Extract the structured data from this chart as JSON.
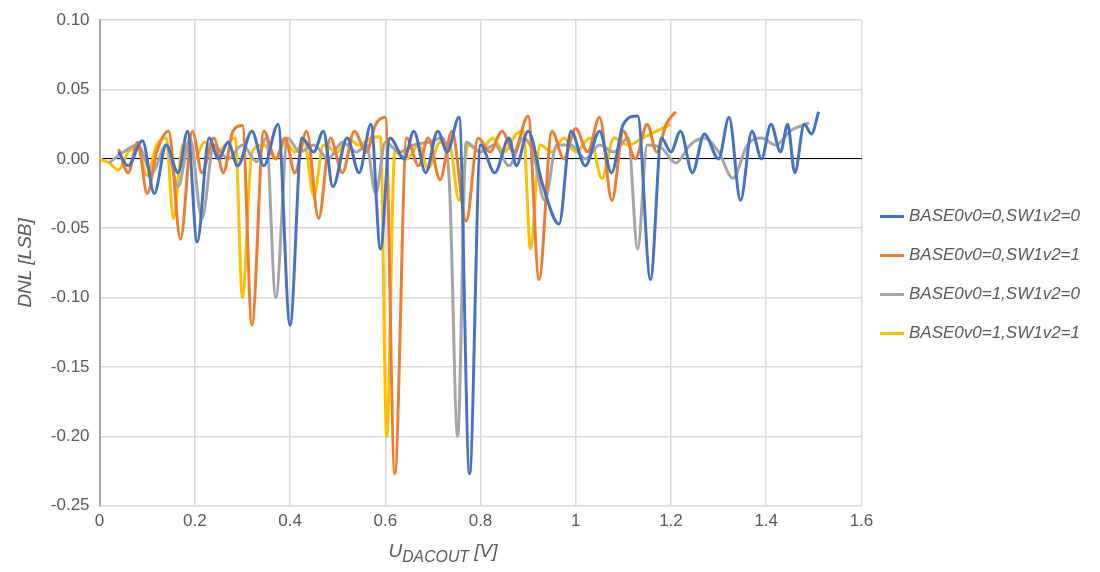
{
  "chart_data": {
    "type": "line",
    "xlabel": "U$_{DACOUT}$ [V]",
    "ylabel": "DNL [LSB]",
    "xlim": [
      0,
      1.6
    ],
    "xticks": [
      0,
      0.2,
      0.4,
      0.6,
      0.8,
      1,
      1.2,
      1.4,
      1.6
    ],
    "ylim": [
      -0.25,
      0.1
    ],
    "yticks": [
      {
        "value": -0.25,
        "label": "-0.25"
      },
      {
        "value": -0.2,
        "label": "-0.20"
      },
      {
        "value": -0.15,
        "label": "-0.15"
      },
      {
        "value": -0.1,
        "label": "-0.10"
      },
      {
        "value": -0.05,
        "label": "-0.05"
      },
      {
        "value": 0,
        "label": "0.00"
      },
      {
        "value": 0.05,
        "label": "0.05"
      },
      {
        "value": 0.1,
        "label": "0.10"
      }
    ],
    "grid": true,
    "legend": "right",
    "marker": "none",
    "line_style": "solid",
    "series": [
      {
        "name": "BASE0v0=0,SW1v2=0",
        "color": "#4472c4",
        "x": [
          0.04,
          0.06,
          0.09,
          0.115,
          0.14,
          0.165,
          0.185,
          0.205,
          0.23,
          0.25,
          0.27,
          0.29,
          0.32,
          0.345,
          0.375,
          0.4,
          0.425,
          0.45,
          0.47,
          0.49,
          0.52,
          0.545,
          0.57,
          0.59,
          0.61,
          0.64,
          0.66,
          0.685,
          0.71,
          0.73,
          0.755,
          0.777,
          0.8,
          0.83,
          0.86,
          0.875,
          0.9,
          0.93,
          0.965,
          0.99,
          1.02,
          1.05,
          1.075,
          1.1,
          1.13,
          1.157,
          1.18,
          1.2,
          1.22,
          1.245,
          1.27,
          1.3,
          1.322,
          1.346,
          1.37,
          1.39,
          1.41,
          1.43,
          1.445,
          1.46,
          1.48,
          1.495,
          1.51
        ],
        "values": [
          0.005,
          -0.005,
          0.013,
          -0.025,
          0.01,
          -0.01,
          0.02,
          -0.06,
          0.015,
          0.0,
          0.012,
          -0.005,
          0.02,
          -0.005,
          0.025,
          -0.12,
          0.015,
          0.005,
          0.02,
          -0.02,
          0.015,
          -0.01,
          0.025,
          -0.065,
          0.015,
          0.0,
          0.02,
          -0.01,
          0.02,
          0.005,
          0.03,
          -0.227,
          0.01,
          -0.01,
          0.015,
          -0.005,
          0.02,
          -0.018,
          -0.047,
          0.02,
          -0.005,
          0.02,
          -0.01,
          0.025,
          0.031,
          -0.087,
          0.015,
          0.005,
          0.02,
          -0.01,
          0.018,
          0.0,
          0.03,
          -0.03,
          0.02,
          0.0,
          0.025,
          0.005,
          0.025,
          -0.01,
          0.025,
          0.018,
          0.034
        ]
      },
      {
        "name": "BASE0v0=0,SW1v2=1",
        "color": "#ed7d31",
        "x": [
          0.04,
          0.06,
          0.08,
          0.1,
          0.12,
          0.145,
          0.17,
          0.195,
          0.215,
          0.24,
          0.26,
          0.28,
          0.3,
          0.32,
          0.345,
          0.37,
          0.39,
          0.41,
          0.435,
          0.46,
          0.485,
          0.51,
          0.535,
          0.56,
          0.58,
          0.6,
          0.62,
          0.645,
          0.67,
          0.69,
          0.715,
          0.74,
          0.77,
          0.795,
          0.82,
          0.845,
          0.87,
          0.9,
          0.923,
          0.95,
          0.975,
          1.0,
          1.025,
          1.05,
          1.076,
          1.1,
          1.125,
          1.15,
          1.17,
          1.19,
          1.21
        ],
        "values": [
          0.007,
          -0.01,
          0.012,
          -0.025,
          0.005,
          0.02,
          -0.058,
          0.02,
          -0.01,
          0.015,
          -0.01,
          0.02,
          0.024,
          -0.12,
          0.02,
          0.0,
          0.015,
          -0.01,
          0.02,
          -0.043,
          0.015,
          -0.01,
          0.02,
          0.005,
          0.025,
          0.03,
          -0.227,
          0.015,
          -0.005,
          0.015,
          -0.015,
          0.02,
          -0.045,
          0.015,
          0.005,
          0.02,
          0.005,
          0.031,
          -0.087,
          0.02,
          0.0,
          0.022,
          0.005,
          0.03,
          -0.03,
          0.02,
          0.0,
          0.025,
          0.005,
          0.025,
          0.034
        ]
      },
      {
        "name": "BASE0v0=1,SW1v2=0",
        "color": "#a5a5a5",
        "x": [
          0.02,
          0.05,
          0.08,
          0.11,
          0.14,
          0.165,
          0.19,
          0.215,
          0.24,
          0.27,
          0.3,
          0.33,
          0.35,
          0.37,
          0.395,
          0.42,
          0.45,
          0.48,
          0.51,
          0.54,
          0.56,
          0.58,
          0.6,
          0.63,
          0.66,
          0.69,
          0.72,
          0.735,
          0.752,
          0.77,
          0.8,
          0.83,
          0.86,
          0.89,
          0.91,
          0.935,
          0.96,
          0.99,
          1.02,
          1.05,
          1.08,
          1.11,
          1.13,
          1.15,
          1.18,
          1.21,
          1.24,
          1.27,
          1.3,
          1.33,
          1.36,
          1.39,
          1.42,
          1.45,
          1.49
        ],
        "values": [
          -0.003,
          0.005,
          0.01,
          -0.01,
          0.01,
          -0.02,
          0.015,
          -0.043,
          0.01,
          0.0,
          0.01,
          -0.002,
          0.015,
          -0.1,
          0.015,
          0.005,
          0.01,
          0.0,
          0.012,
          0.005,
          0.01,
          -0.025,
          0.012,
          0.005,
          0.01,
          0.012,
          0.015,
          -0.02,
          -0.2,
          0.012,
          0.005,
          0.01,
          -0.005,
          0.015,
          0.005,
          -0.03,
          0.01,
          0.01,
          0.0,
          0.01,
          0.005,
          0.015,
          -0.065,
          0.01,
          0.008,
          -0.003,
          0.01,
          0.015,
          0.005,
          -0.014,
          0.01,
          0.015,
          0.01,
          0.02,
          0.026
        ]
      },
      {
        "name": "BASE0v0=1,SW1v2=1",
        "color": "#ffc000",
        "x": [
          0.0,
          0.02,
          0.04,
          0.06,
          0.08,
          0.1,
          0.12,
          0.14,
          0.155,
          0.175,
          0.2,
          0.22,
          0.245,
          0.27,
          0.285,
          0.3,
          0.32,
          0.345,
          0.37,
          0.39,
          0.41,
          0.43,
          0.45,
          0.47,
          0.5,
          0.52,
          0.545,
          0.57,
          0.59,
          0.603,
          0.62,
          0.645,
          0.67,
          0.69,
          0.715,
          0.735,
          0.755,
          0.775,
          0.8,
          0.825,
          0.85,
          0.875,
          0.89,
          0.905,
          0.925,
          0.95,
          0.975,
          1.0,
          1.03,
          1.055,
          1.08,
          1.11,
          1.14,
          1.17,
          1.2
        ],
        "values": [
          0.0,
          -0.003,
          -0.008,
          0.005,
          0.008,
          -0.012,
          0.01,
          0.015,
          -0.043,
          0.01,
          0.0,
          0.012,
          0.005,
          0.012,
          0.015,
          -0.1,
          0.005,
          0.01,
          0.0,
          0.012,
          0.005,
          0.012,
          -0.027,
          0.01,
          0.005,
          0.015,
          0.01,
          0.015,
          0.016,
          -0.2,
          0.005,
          0.0,
          0.01,
          -0.007,
          0.012,
          0.01,
          -0.03,
          0.01,
          0.005,
          0.015,
          0.005,
          0.018,
          0.02,
          -0.065,
          0.01,
          0.005,
          0.015,
          0.005,
          0.015,
          -0.014,
          0.015,
          0.01,
          0.015,
          0.02,
          0.025
        ]
      }
    ]
  }
}
